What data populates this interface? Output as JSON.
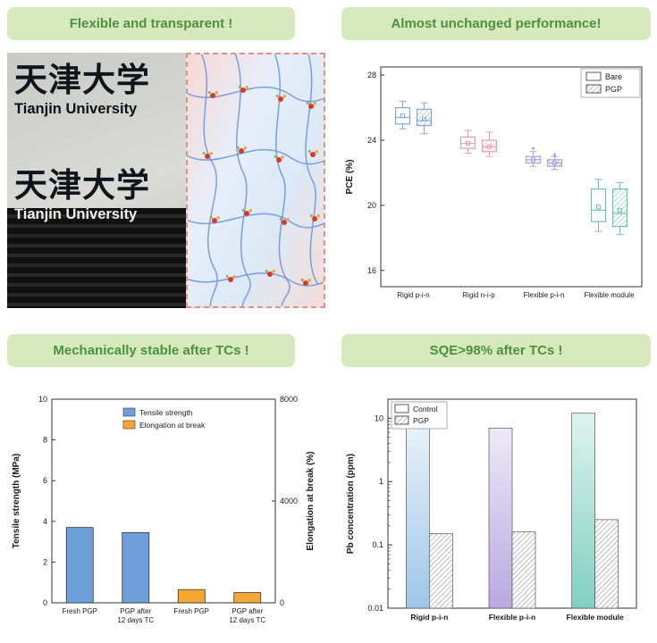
{
  "headers": {
    "top_left": "Flexible and transparent !",
    "top_right": "Almost unchanged performance!",
    "bottom_left": "Mechanically stable after TCs !",
    "bottom_right": "SQE>98% after TCs !"
  },
  "header_style": {
    "bg": "#d6e9bd",
    "color": "#4c9140"
  },
  "photo": {
    "logo1_cn": "天津大学",
    "logo1_en": "Tianjin University",
    "logo2_cn": "天津大学",
    "logo2_en": "Tianjin University"
  },
  "chart_data": [
    {
      "id": "pce-boxplot",
      "type": "box",
      "ylabel": "PCE (%)",
      "ylim": [
        15,
        28.5
      ],
      "yticks": [
        16,
        20,
        24,
        28
      ],
      "categories": [
        "Rigid p-i-n",
        "Rigid n-i-p",
        "Flexible p-i-n",
        "Flexible module"
      ],
      "category_colors": [
        "#7fa8d9",
        "#e89cb0",
        "#a89cd8",
        "#6fbfb4"
      ],
      "legend": [
        "Bare",
        "PGP"
      ],
      "series": [
        {
          "name": "Bare",
          "boxes": [
            {
              "low": 24.7,
              "q1": 25.0,
              "median": 25.4,
              "q3": 26.0,
              "high": 26.4,
              "mean": 25.5
            },
            {
              "low": 23.2,
              "q1": 23.5,
              "median": 23.8,
              "q3": 24.2,
              "high": 24.6,
              "mean": 23.8
            },
            {
              "low": 22.4,
              "q1": 22.6,
              "median": 22.8,
              "q3": 23.0,
              "high": 23.3,
              "mean": 22.8,
              "outliers": [
                23.5
              ]
            },
            {
              "low": 18.4,
              "q1": 19.0,
              "median": 19.7,
              "q3": 21.0,
              "high": 21.6,
              "mean": 19.9
            }
          ]
        },
        {
          "name": "PGP",
          "boxes": [
            {
              "low": 24.4,
              "q1": 24.9,
              "median": 25.2,
              "q3": 25.9,
              "high": 26.3,
              "mean": 25.3
            },
            {
              "low": 23.0,
              "q1": 23.3,
              "median": 23.6,
              "q3": 24.0,
              "high": 24.5,
              "mean": 23.6
            },
            {
              "low": 22.2,
              "q1": 22.4,
              "median": 22.6,
              "q3": 22.8,
              "high": 23.0,
              "mean": 22.6,
              "outliers": [
                23.1
              ]
            },
            {
              "low": 18.2,
              "q1": 18.7,
              "median": 19.5,
              "q3": 21.0,
              "high": 21.4,
              "mean": 19.7
            }
          ]
        }
      ]
    },
    {
      "id": "mechanical-bars",
      "type": "bar",
      "ylabel_left": "Tensile strength (MPa)",
      "ylabel_right": "Elongation at break (%)",
      "ylim_left": [
        0,
        10
      ],
      "yticks_left": [
        0,
        2,
        4,
        6,
        8,
        10
      ],
      "ylim_right": [
        0,
        8000
      ],
      "yticks_right": [
        0,
        4000,
        8000
      ],
      "categories": [
        [
          "Fresh PGP"
        ],
        [
          "PGP after",
          "12 days TC"
        ],
        [
          "Fresh PGP"
        ],
        [
          "PGP after",
          "12 days TC"
        ]
      ],
      "legend": [
        {
          "label": "Tensile strength",
          "color": "#6f9fd8"
        },
        {
          "label": "Elongation at break",
          "color": "#f5a733"
        }
      ],
      "bars": [
        {
          "value": 3.7,
          "axis": "left",
          "color": "#6f9fd8"
        },
        {
          "value": 3.45,
          "axis": "left",
          "color": "#6f9fd8"
        },
        {
          "value": 520,
          "axis": "right",
          "color": "#f5a733"
        },
        {
          "value": 400,
          "axis": "right",
          "color": "#f5a733"
        }
      ]
    },
    {
      "id": "pb-log-bars",
      "type": "bar-log",
      "ylabel": "Pb concentration (ppm)",
      "ylim": [
        0.01,
        20
      ],
      "yticks": [
        0.01,
        0.1,
        1,
        10
      ],
      "categories": [
        "Rigid p-i-n",
        "Flexible p-i-n",
        "Flexible module"
      ],
      "legend": [
        "Control",
        "PGP"
      ],
      "series": [
        {
          "name": "Control",
          "values": [
            7,
            7,
            12
          ],
          "colors": [
            "#9fc6e8",
            "#b8a8e0",
            "#7fd0c0"
          ]
        },
        {
          "name": "PGP",
          "values": [
            0.15,
            0.16,
            0.25
          ],
          "hatched": true
        }
      ]
    }
  ]
}
